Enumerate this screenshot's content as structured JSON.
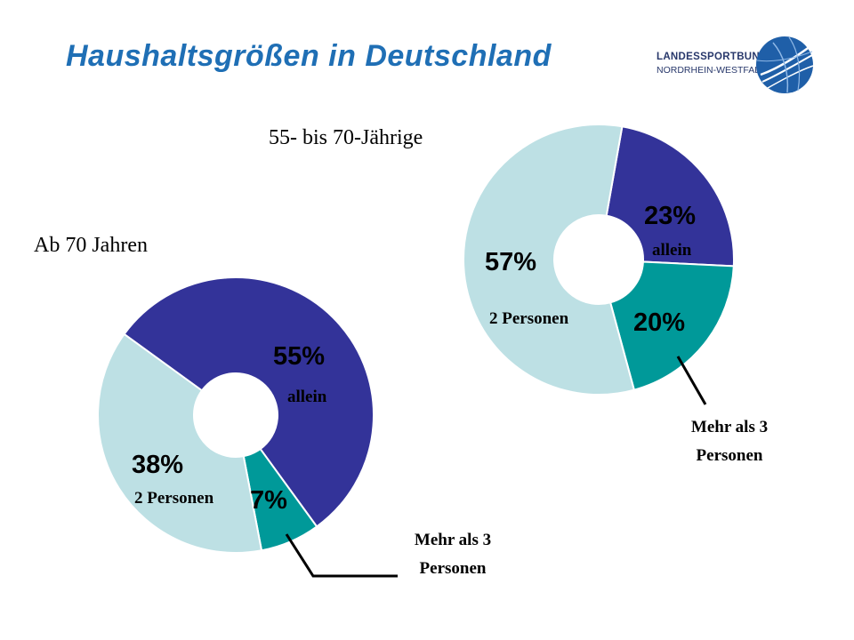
{
  "slide": {
    "title": "Haushaltsgrößen in Deutschland",
    "title_color": "#1f6fb5"
  },
  "logo": {
    "line1": "LANDESSPORTBUND",
    "line2": "NORDRHEIN-WESTFALEN",
    "icon": "globe-logo-icon",
    "color": "#1f5fa8"
  },
  "colors": {
    "allein": "#333399",
    "mehr_als_3": "#009999",
    "zwei_personen": "#bde0e4"
  },
  "chart_data": [
    {
      "type": "pie",
      "variant": "donut",
      "title": "55- bis 70-Jährige",
      "slices": [
        {
          "label": "allein",
          "value": 23,
          "value_label": "23%",
          "color": "#333399"
        },
        {
          "label": "Mehr als 3 Personen",
          "value": 20,
          "value_label": "20%",
          "color": "#009999"
        },
        {
          "label": "2 Personen",
          "value": 57,
          "value_label": "57%",
          "color": "#bde0e4"
        }
      ]
    },
    {
      "type": "pie",
      "variant": "donut",
      "title": "Ab 70 Jahren",
      "slices": [
        {
          "label": "allein",
          "value": 55,
          "value_label": "55%",
          "color": "#333399"
        },
        {
          "label": "Mehr als 3 Personen",
          "value": 7,
          "value_label": "7%",
          "color": "#009999"
        },
        {
          "label": "2 Personen",
          "value": 38,
          "value_label": "38%",
          "color": "#bde0e4"
        }
      ]
    }
  ],
  "callouts": {
    "mehr_line1": "Mehr als 3",
    "mehr_line2": "Personen"
  }
}
